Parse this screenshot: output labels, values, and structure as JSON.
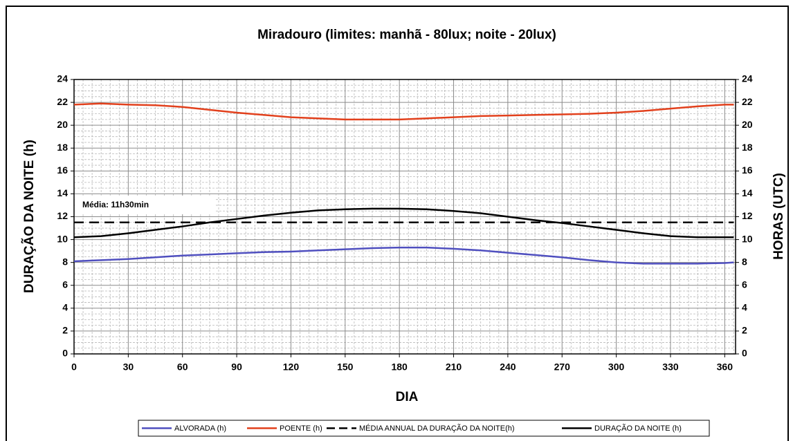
{
  "chart_data": {
    "type": "line",
    "title": "Miradouro (limites: manhã - 80lux; noite - 20lux)",
    "xlabel": "DIA",
    "ylabel": "DURAÇÃO DA NOITE (h)",
    "y2label": "HORAS (UTC)",
    "annotation": "Média: 11h30min",
    "x": [
      0,
      15,
      30,
      45,
      60,
      75,
      90,
      105,
      120,
      135,
      150,
      165,
      180,
      195,
      210,
      225,
      240,
      255,
      270,
      285,
      300,
      315,
      330,
      345,
      360,
      365
    ],
    "series": [
      {
        "name": "ALVORADA (h)",
        "color": "#4f4fbf",
        "dash": false,
        "axis": "y2",
        "values": [
          8.1,
          8.2,
          8.3,
          8.45,
          8.6,
          8.7,
          8.8,
          8.9,
          8.95,
          9.05,
          9.15,
          9.25,
          9.3,
          9.3,
          9.2,
          9.05,
          8.85,
          8.65,
          8.45,
          8.2,
          8.0,
          7.9,
          7.9,
          7.9,
          7.95,
          8.0
        ]
      },
      {
        "name": "POENTE (h)",
        "color": "#e2401c",
        "dash": false,
        "axis": "y2",
        "values": [
          21.8,
          21.9,
          21.8,
          21.75,
          21.6,
          21.35,
          21.1,
          20.9,
          20.7,
          20.6,
          20.5,
          20.5,
          20.5,
          20.6,
          20.7,
          20.8,
          20.85,
          20.9,
          20.95,
          21.0,
          21.1,
          21.25,
          21.45,
          21.65,
          21.8,
          21.8
        ]
      },
      {
        "name": "MÉDIA ANNUAL DA DURAÇÃO DA NOITE(h)",
        "color": "#000000",
        "dash": true,
        "values": [
          11.5,
          11.5,
          11.5,
          11.5,
          11.5,
          11.5,
          11.5,
          11.5,
          11.5,
          11.5,
          11.5,
          11.5,
          11.5,
          11.5,
          11.5,
          11.5,
          11.5,
          11.5,
          11.5,
          11.5,
          11.5,
          11.5,
          11.5,
          11.5,
          11.5,
          11.5
        ]
      },
      {
        "name": "DURAÇÃO DA NOITE (h)",
        "color": "#000000",
        "dash": false,
        "values": [
          10.2,
          10.3,
          10.55,
          10.85,
          11.15,
          11.5,
          11.8,
          12.1,
          12.35,
          12.55,
          12.65,
          12.7,
          12.7,
          12.65,
          12.5,
          12.3,
          12.0,
          11.7,
          11.45,
          11.15,
          10.85,
          10.55,
          10.3,
          10.2,
          10.2,
          10.2
        ]
      }
    ],
    "xlim": [
      0,
      366
    ],
    "xticks": [
      0,
      30,
      60,
      90,
      120,
      150,
      180,
      210,
      240,
      270,
      300,
      330,
      360
    ],
    "ylim": [
      0,
      24
    ],
    "yticks": [
      0,
      2,
      4,
      6,
      8,
      10,
      12,
      14,
      16,
      18,
      20,
      22,
      24
    ],
    "y2lim": [
      0,
      24
    ],
    "y2ticks": [
      0,
      2,
      4,
      6,
      8,
      10,
      12,
      14,
      16,
      18,
      20,
      22,
      24
    ],
    "grid": true,
    "legend": "bottom"
  }
}
